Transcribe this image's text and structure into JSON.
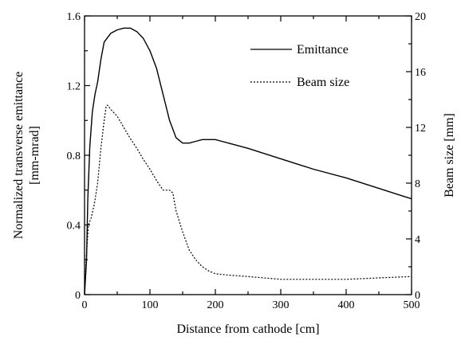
{
  "chart_data": {
    "type": "line",
    "xlabel": "Distance from cathode [cm]",
    "ylabel_lines": [
      "Normalized transverse emittance",
      "[mm-mrad]"
    ],
    "y2label": "Beam size [mm]",
    "xlim": [
      0,
      500
    ],
    "ylim": [
      0,
      1.6
    ],
    "y2lim": [
      0,
      20
    ],
    "xticks": [
      0,
      100,
      200,
      300,
      400,
      500
    ],
    "yticks": [
      0,
      0.4,
      0.8,
      1.2,
      1.6
    ],
    "yticklabels": [
      "0",
      "0.4",
      "0.8",
      "1.2",
      "1.6"
    ],
    "y2ticks": [
      0,
      4,
      8,
      12,
      16,
      20
    ],
    "grid": false,
    "legend": "top-right",
    "series": [
      {
        "name": "Emittance",
        "axis": "left",
        "style": "solid",
        "color": "#000000",
        "x": [
          0,
          3,
          5,
          8,
          12,
          16,
          20,
          25,
          30,
          40,
          50,
          60,
          70,
          80,
          90,
          100,
          110,
          120,
          130,
          140,
          150,
          160,
          170,
          180,
          190,
          200,
          210,
          220,
          250,
          300,
          350,
          400,
          450,
          500
        ],
        "y": [
          0.0,
          0.2,
          0.55,
          0.85,
          1.05,
          1.15,
          1.22,
          1.35,
          1.45,
          1.5,
          1.52,
          1.53,
          1.53,
          1.51,
          1.47,
          1.4,
          1.3,
          1.15,
          1.0,
          0.9,
          0.87,
          0.87,
          0.88,
          0.89,
          0.89,
          0.89,
          0.88,
          0.87,
          0.84,
          0.78,
          0.72,
          0.67,
          0.61,
          0.55
        ]
      },
      {
        "name": "Beam size",
        "axis": "right",
        "style": "dotted",
        "color": "#000000",
        "x": [
          0,
          3,
          6,
          10,
          15,
          20,
          25,
          30,
          33,
          35,
          40,
          50,
          60,
          70,
          80,
          90,
          100,
          110,
          120,
          130,
          135,
          140,
          150,
          160,
          170,
          180,
          190,
          200,
          220,
          250,
          300,
          350,
          400,
          450,
          500
        ],
        "y": [
          0.0,
          3.0,
          5.0,
          5.5,
          6.5,
          8.0,
          10.5,
          12.5,
          13.5,
          13.6,
          13.3,
          12.8,
          12.0,
          11.2,
          10.5,
          9.7,
          9.0,
          8.2,
          7.5,
          7.5,
          7.3,
          6.0,
          4.5,
          3.2,
          2.5,
          2.0,
          1.7,
          1.5,
          1.4,
          1.3,
          1.1,
          1.1,
          1.1,
          1.2,
          1.3
        ]
      }
    ]
  }
}
